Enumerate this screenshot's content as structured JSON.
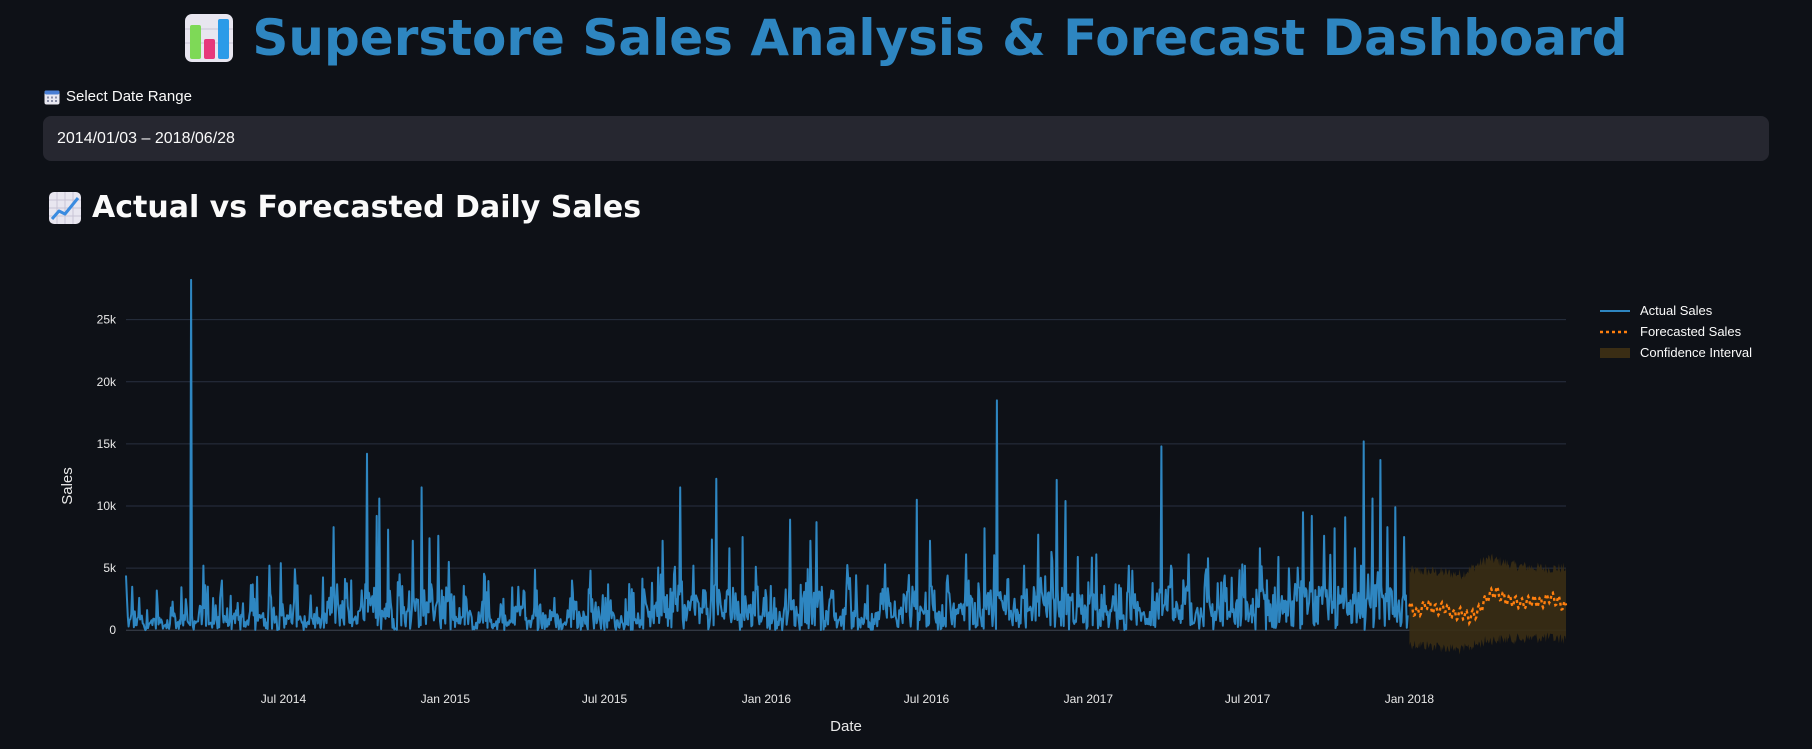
{
  "header": {
    "title": "Superstore Sales Analysis & Forecast Dashboard",
    "icon": "bar-chart-icon"
  },
  "date_range": {
    "label": "Select Date Range",
    "icon": "calendar-icon",
    "value": "2014/01/03 – 2018/06/28"
  },
  "section": {
    "title": "Actual vs Forecasted Daily Sales",
    "icon": "chart-increasing-icon"
  },
  "colors": {
    "background": "#0e1117",
    "title": "#2e86c1",
    "actual": "#2e86c1",
    "forecast": "#ff7f0e",
    "confidence": "#3a2d14",
    "input_bg": "#262730"
  },
  "chart_data": {
    "type": "line",
    "xlabel": "Date",
    "ylabel": "Sales",
    "x_range": [
      "2014-01-03",
      "2018-06-28"
    ],
    "ylim": [
      -2400,
      29000
    ],
    "y_ticks": [
      {
        "value": 0,
        "label": "0"
      },
      {
        "value": 5000,
        "label": "5k"
      },
      {
        "value": 10000,
        "label": "10k"
      },
      {
        "value": 15000,
        "label": "15k"
      },
      {
        "value": 20000,
        "label": "20k"
      },
      {
        "value": 25000,
        "label": "25k"
      }
    ],
    "x_ticks": [
      {
        "date": "2014-07-01",
        "label": "Jul 2014"
      },
      {
        "date": "2015-01-01",
        "label": "Jan 2015"
      },
      {
        "date": "2015-07-01",
        "label": "Jul 2015"
      },
      {
        "date": "2016-01-01",
        "label": "Jan 2016"
      },
      {
        "date": "2016-07-01",
        "label": "Jul 2016"
      },
      {
        "date": "2017-01-01",
        "label": "Jan 2017"
      },
      {
        "date": "2017-07-01",
        "label": "Jul 2017"
      },
      {
        "date": "2018-01-01",
        "label": "Jan 2018"
      }
    ],
    "grid": true,
    "legend_position": "top-right",
    "series": [
      {
        "name": "Actual Sales",
        "style": "solid",
        "points": [
          [
            "2014-01-03",
            4400
          ],
          [
            "2014-01-06",
            300
          ],
          [
            "2014-01-10",
            3500
          ],
          [
            "2014-01-14",
            400
          ],
          [
            "2014-01-18",
            2600
          ],
          [
            "2014-01-24",
            200
          ],
          [
            "2014-02-01",
            800
          ],
          [
            "2014-02-08",
            2000
          ],
          [
            "2014-02-15",
            300
          ],
          [
            "2014-02-25",
            2300
          ],
          [
            "2014-03-05",
            800
          ],
          [
            "2014-03-12",
            2500
          ],
          [
            "2014-03-17",
            400
          ],
          [
            "2014-03-18",
            28200
          ],
          [
            "2014-03-19",
            1200
          ],
          [
            "2014-03-25",
            700
          ],
          [
            "2014-04-01",
            5200
          ],
          [
            "2014-04-08",
            500
          ],
          [
            "2014-04-20",
            2600
          ],
          [
            "2014-05-01",
            900
          ],
          [
            "2014-05-10",
            2200
          ],
          [
            "2014-05-20",
            600
          ],
          [
            "2014-06-01",
            4300
          ],
          [
            "2014-06-10",
            900
          ],
          [
            "2014-06-15",
            5200
          ],
          [
            "2014-06-22",
            800
          ],
          [
            "2014-06-28",
            5400
          ],
          [
            "2014-07-05",
            1200
          ],
          [
            "2014-07-15",
            3500
          ],
          [
            "2014-07-22",
            600
          ],
          [
            "2014-08-01",
            2800
          ],
          [
            "2014-08-10",
            1000
          ],
          [
            "2014-08-20",
            2300
          ],
          [
            "2014-08-27",
            8300
          ],
          [
            "2014-09-02",
            1500
          ],
          [
            "2014-09-10",
            2600
          ],
          [
            "2014-09-20",
            1000
          ],
          [
            "2014-09-28",
            3200
          ],
          [
            "2014-10-01",
            800
          ],
          [
            "2014-10-04",
            14200
          ],
          [
            "2014-10-08",
            2000
          ],
          [
            "2014-10-15",
            9200
          ],
          [
            "2014-10-18",
            10600
          ],
          [
            "2014-10-22",
            1300
          ],
          [
            "2014-10-28",
            8100
          ],
          [
            "2014-11-03",
            900
          ],
          [
            "2014-11-10",
            4500
          ],
          [
            "2014-11-18",
            1500
          ],
          [
            "2014-11-25",
            7200
          ],
          [
            "2014-11-30",
            2300
          ],
          [
            "2014-12-05",
            11500
          ],
          [
            "2014-12-09",
            1600
          ],
          [
            "2014-12-14",
            7400
          ],
          [
            "2014-12-20",
            1200
          ],
          [
            "2014-12-24",
            7600
          ],
          [
            "2014-12-28",
            3200
          ],
          [
            "2015-01-05",
            5500
          ],
          [
            "2015-01-15",
            900
          ],
          [
            "2015-01-25",
            2500
          ],
          [
            "2015-02-05",
            600
          ],
          [
            "2015-02-15",
            4300
          ],
          [
            "2015-02-25",
            500
          ],
          [
            "2015-03-05",
            2100
          ],
          [
            "2015-03-15",
            800
          ],
          [
            "2015-03-25",
            3500
          ],
          [
            "2015-04-05",
            700
          ],
          [
            "2015-04-15",
            3200
          ],
          [
            "2015-04-25",
            1200
          ],
          [
            "2015-05-05",
            2600
          ],
          [
            "2015-05-15",
            500
          ],
          [
            "2015-05-25",
            4000
          ],
          [
            "2015-06-05",
            1000
          ],
          [
            "2015-06-15",
            4800
          ],
          [
            "2015-06-25",
            1300
          ],
          [
            "2015-07-05",
            3700
          ],
          [
            "2015-07-15",
            800
          ],
          [
            "2015-07-25",
            2500
          ],
          [
            "2015-08-05",
            900
          ],
          [
            "2015-08-15",
            3300
          ],
          [
            "2015-08-25",
            1100
          ],
          [
            "2015-09-05",
            7200
          ],
          [
            "2015-09-12",
            1700
          ],
          [
            "2015-09-18",
            4500
          ],
          [
            "2015-09-25",
            11500
          ],
          [
            "2015-10-01",
            1800
          ],
          [
            "2015-10-10",
            5200
          ],
          [
            "2015-10-20",
            1400
          ],
          [
            "2015-10-31",
            7300
          ],
          [
            "2015-11-05",
            12200
          ],
          [
            "2015-11-10",
            2100
          ],
          [
            "2015-11-20",
            6600
          ],
          [
            "2015-11-30",
            2300
          ],
          [
            "2015-12-05",
            7500
          ],
          [
            "2015-12-12",
            2000
          ],
          [
            "2015-12-20",
            5100
          ],
          [
            "2015-12-28",
            1500
          ],
          [
            "2016-01-10",
            2600
          ],
          [
            "2016-01-20",
            800
          ],
          [
            "2016-01-28",
            8900
          ],
          [
            "2016-02-05",
            1200
          ],
          [
            "2016-02-15",
            3800
          ],
          [
            "2016-02-20",
            7200
          ],
          [
            "2016-02-27",
            8700
          ],
          [
            "2016-03-05",
            1800
          ],
          [
            "2016-03-15",
            3200
          ],
          [
            "2016-03-25",
            1100
          ],
          [
            "2016-04-05",
            4200
          ],
          [
            "2016-04-15",
            900
          ],
          [
            "2016-04-25",
            3600
          ],
          [
            "2016-05-05",
            1400
          ],
          [
            "2016-05-15",
            5300
          ],
          [
            "2016-05-25",
            1200
          ],
          [
            "2016-06-05",
            2900
          ],
          [
            "2016-06-20",
            10500
          ],
          [
            "2016-06-26",
            1600
          ],
          [
            "2016-07-05",
            7200
          ],
          [
            "2016-07-15",
            1500
          ],
          [
            "2016-07-25",
            4400
          ],
          [
            "2016-08-05",
            1700
          ],
          [
            "2016-08-15",
            6100
          ],
          [
            "2016-08-25",
            2200
          ],
          [
            "2016-09-05",
            8200
          ],
          [
            "2016-09-12",
            3200
          ],
          [
            "2016-09-19",
            18500
          ],
          [
            "2016-09-24",
            2400
          ],
          [
            "2016-10-01",
            4100
          ],
          [
            "2016-10-10",
            1600
          ],
          [
            "2016-10-20",
            5200
          ],
          [
            "2016-10-28",
            1700
          ],
          [
            "2016-11-05",
            7700
          ],
          [
            "2016-11-12",
            2000
          ],
          [
            "2016-11-20",
            6300
          ],
          [
            "2016-11-26",
            12100
          ],
          [
            "2016-11-30",
            2300
          ],
          [
            "2016-12-06",
            10400
          ],
          [
            "2016-12-12",
            2600
          ],
          [
            "2016-12-20",
            5900
          ],
          [
            "2016-12-28",
            2000
          ],
          [
            "2017-01-10",
            6100
          ],
          [
            "2017-01-20",
            1500
          ],
          [
            "2017-02-01",
            3700
          ],
          [
            "2017-02-10",
            1200
          ],
          [
            "2017-02-20",
            4800
          ],
          [
            "2017-03-01",
            1500
          ],
          [
            "2017-03-15",
            3800
          ],
          [
            "2017-03-25",
            14800
          ],
          [
            "2017-03-28",
            2000
          ],
          [
            "2017-04-05",
            5200
          ],
          [
            "2017-04-15",
            1600
          ],
          [
            "2017-04-25",
            6100
          ],
          [
            "2017-05-05",
            1800
          ],
          [
            "2017-05-15",
            4900
          ],
          [
            "2017-05-25",
            1500
          ],
          [
            "2017-06-05",
            4400
          ],
          [
            "2017-06-15",
            1700
          ],
          [
            "2017-06-25",
            5300
          ],
          [
            "2017-07-05",
            2000
          ],
          [
            "2017-07-15",
            6600
          ],
          [
            "2017-07-25",
            2400
          ],
          [
            "2017-08-05",
            5900
          ],
          [
            "2017-08-15",
            2300
          ],
          [
            "2017-08-25",
            3600
          ],
          [
            "2017-09-02",
            9500
          ],
          [
            "2017-09-06",
            3200
          ],
          [
            "2017-09-12",
            9200
          ],
          [
            "2017-09-18",
            2700
          ],
          [
            "2017-09-26",
            7600
          ],
          [
            "2017-10-02",
            3000
          ],
          [
            "2017-10-08",
            8200
          ],
          [
            "2017-10-14",
            2800
          ],
          [
            "2017-10-20",
            9100
          ],
          [
            "2017-10-26",
            2400
          ],
          [
            "2017-10-31",
            6600
          ],
          [
            "2017-11-04",
            3000
          ],
          [
            "2017-11-10",
            15200
          ],
          [
            "2017-11-14",
            2600
          ],
          [
            "2017-11-20",
            10600
          ],
          [
            "2017-11-25",
            3500
          ],
          [
            "2017-11-29",
            13700
          ],
          [
            "2017-12-02",
            2800
          ],
          [
            "2017-12-07",
            8300
          ],
          [
            "2017-12-11",
            3300
          ],
          [
            "2017-12-16",
            9900
          ],
          [
            "2017-12-20",
            2400
          ],
          [
            "2017-12-26",
            7500
          ],
          [
            "2017-12-30",
            1200
          ]
        ]
      },
      {
        "name": "Forecasted Sales",
        "style": "dotted",
        "points": [
          [
            "2018-01-01",
            1900
          ],
          [
            "2018-01-10",
            1400
          ],
          [
            "2018-01-20",
            2100
          ],
          [
            "2018-02-01",
            1600
          ],
          [
            "2018-02-10",
            1900
          ],
          [
            "2018-02-20",
            1200
          ],
          [
            "2018-03-01",
            1400
          ],
          [
            "2018-03-10",
            1000
          ],
          [
            "2018-03-20",
            1500
          ],
          [
            "2018-04-01",
            2800
          ],
          [
            "2018-04-10",
            3100
          ],
          [
            "2018-04-20",
            2500
          ],
          [
            "2018-05-01",
            2300
          ],
          [
            "2018-05-10",
            2100
          ],
          [
            "2018-05-20",
            2400
          ],
          [
            "2018-06-01",
            2200
          ],
          [
            "2018-06-10",
            2700
          ],
          [
            "2018-06-20",
            2300
          ],
          [
            "2018-06-28",
            1800
          ]
        ]
      },
      {
        "name": "Confidence Interval",
        "style": "band",
        "lower": [
          [
            "2018-01-01",
            -1100
          ],
          [
            "2018-02-01",
            -1300
          ],
          [
            "2018-03-01",
            -1600
          ],
          [
            "2018-04-01",
            -800
          ],
          [
            "2018-05-01",
            -700
          ],
          [
            "2018-06-01",
            -600
          ],
          [
            "2018-06-28",
            -700
          ]
        ],
        "upper": [
          [
            "2018-01-01",
            4800
          ],
          [
            "2018-02-01",
            4700
          ],
          [
            "2018-03-01",
            4500
          ],
          [
            "2018-04-01",
            5800
          ],
          [
            "2018-05-01",
            5200
          ],
          [
            "2018-06-01",
            5000
          ],
          [
            "2018-06-28",
            5000
          ]
        ]
      }
    ]
  }
}
